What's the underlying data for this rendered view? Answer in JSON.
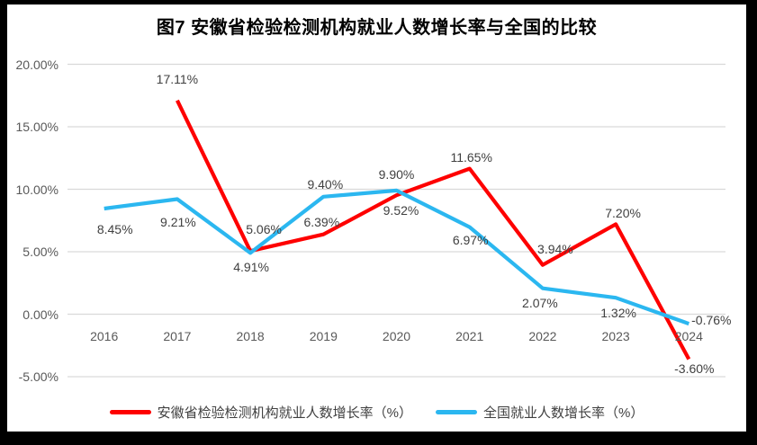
{
  "chart_data": {
    "type": "line",
    "title": "图7  安徽省检验检测机构就业人数增长率与全国的比较",
    "categories": [
      "2016",
      "2017",
      "2018",
      "2019",
      "2020",
      "2021",
      "2022",
      "2023",
      "2024"
    ],
    "y_axis": {
      "min": -5,
      "max": 20,
      "step": 5,
      "format": "percent",
      "ticks": [
        {
          "value": 20,
          "label": "20.00%"
        },
        {
          "value": 15,
          "label": "15.00%"
        },
        {
          "value": 10,
          "label": "10.00%"
        },
        {
          "value": 5,
          "label": "5.00%"
        },
        {
          "value": 0,
          "label": "0.00%"
        },
        {
          "value": -5,
          "label": "-5.00%"
        }
      ]
    },
    "grid": "horizontal",
    "legend_position": "bottom",
    "series": [
      {
        "name": "安徽省检验检测机构就业人数增长率（%）",
        "color": "#FE0000",
        "values": [
          null,
          17.11,
          5.06,
          6.39,
          9.52,
          11.65,
          3.94,
          7.2,
          -3.6
        ],
        "labels": [
          null,
          "17.11%",
          "5.06%",
          "6.39%",
          "9.52%",
          "11.65%",
          "3.94%",
          "7.20%",
          "-3.60%"
        ]
      },
      {
        "name": "全国就业人数增长率（%）",
        "color": "#2BB7F0",
        "values": [
          8.45,
          9.21,
          4.91,
          9.4,
          9.9,
          6.97,
          2.07,
          1.32,
          -0.76
        ],
        "labels": [
          "8.45%",
          "9.21%",
          "4.91%",
          "9.40%",
          "9.90%",
          "6.97%",
          "2.07%",
          "1.32%",
          "-0.76%"
        ]
      }
    ],
    "colors": {
      "gridline": "#D9D9D9",
      "axis_text": "#595959",
      "data_label_text": "#404040",
      "title_text": "#000000",
      "frame": "#000000",
      "background": "#FFFFFF"
    }
  }
}
